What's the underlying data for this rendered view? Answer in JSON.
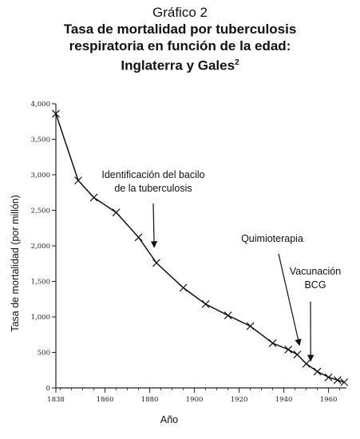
{
  "chart_data": {
    "type": "line",
    "pretitle": "Gráfico 2",
    "title_lines": [
      "Tasa de mortalidad por tuberculosis",
      "respiratoria en función de la edad:",
      "Inglaterra y Gales"
    ],
    "title_superscript": "2",
    "xlabel": "Año",
    "ylabel": "Tasa de mortalidad (por millón)",
    "xlim": [
      1838,
      1968
    ],
    "ylim": [
      0,
      4000
    ],
    "x_ticks": [
      1838,
      1860,
      1880,
      1900,
      1920,
      1940,
      1960
    ],
    "y_ticks": [
      {
        "value": 0,
        "label": "0"
      },
      {
        "value": 500,
        "label": "500"
      },
      {
        "value": 1000,
        "label": "1,000"
      },
      {
        "value": 1500,
        "label": "1,500"
      },
      {
        "value": 2000,
        "label": "2,000"
      },
      {
        "value": 2500,
        "label": "2,500"
      },
      {
        "value": 3000,
        "label": "3,000"
      },
      {
        "value": 3500,
        "label": "3,500"
      },
      {
        "value": 4000,
        "label": "4,000"
      }
    ],
    "grid": false,
    "legend": "none",
    "series": [
      {
        "marker": "x",
        "color": "#111111",
        "x": [
          1838,
          1848,
          1855,
          1865,
          1875,
          1883,
          1895,
          1905,
          1915,
          1925,
          1935,
          1942,
          1946,
          1950,
          1955,
          1960,
          1964,
          1967
        ],
        "y": [
          3860,
          2920,
          2680,
          2470,
          2120,
          1760,
          1410,
          1180,
          1020,
          870,
          630,
          540,
          470,
          340,
          230,
          150,
          110,
          80
        ]
      }
    ],
    "annotations": [
      {
        "lines": [
          "Identificación del bacilo",
          "de la tuberculosis"
        ],
        "x": 1882,
        "y": 1980
      },
      {
        "lines": [
          "Quimioterapia"
        ],
        "x": 1947,
        "y": 600
      },
      {
        "lines": [
          "Vacunación",
          "BCG"
        ],
        "x": 1952,
        "y": 380
      }
    ]
  }
}
